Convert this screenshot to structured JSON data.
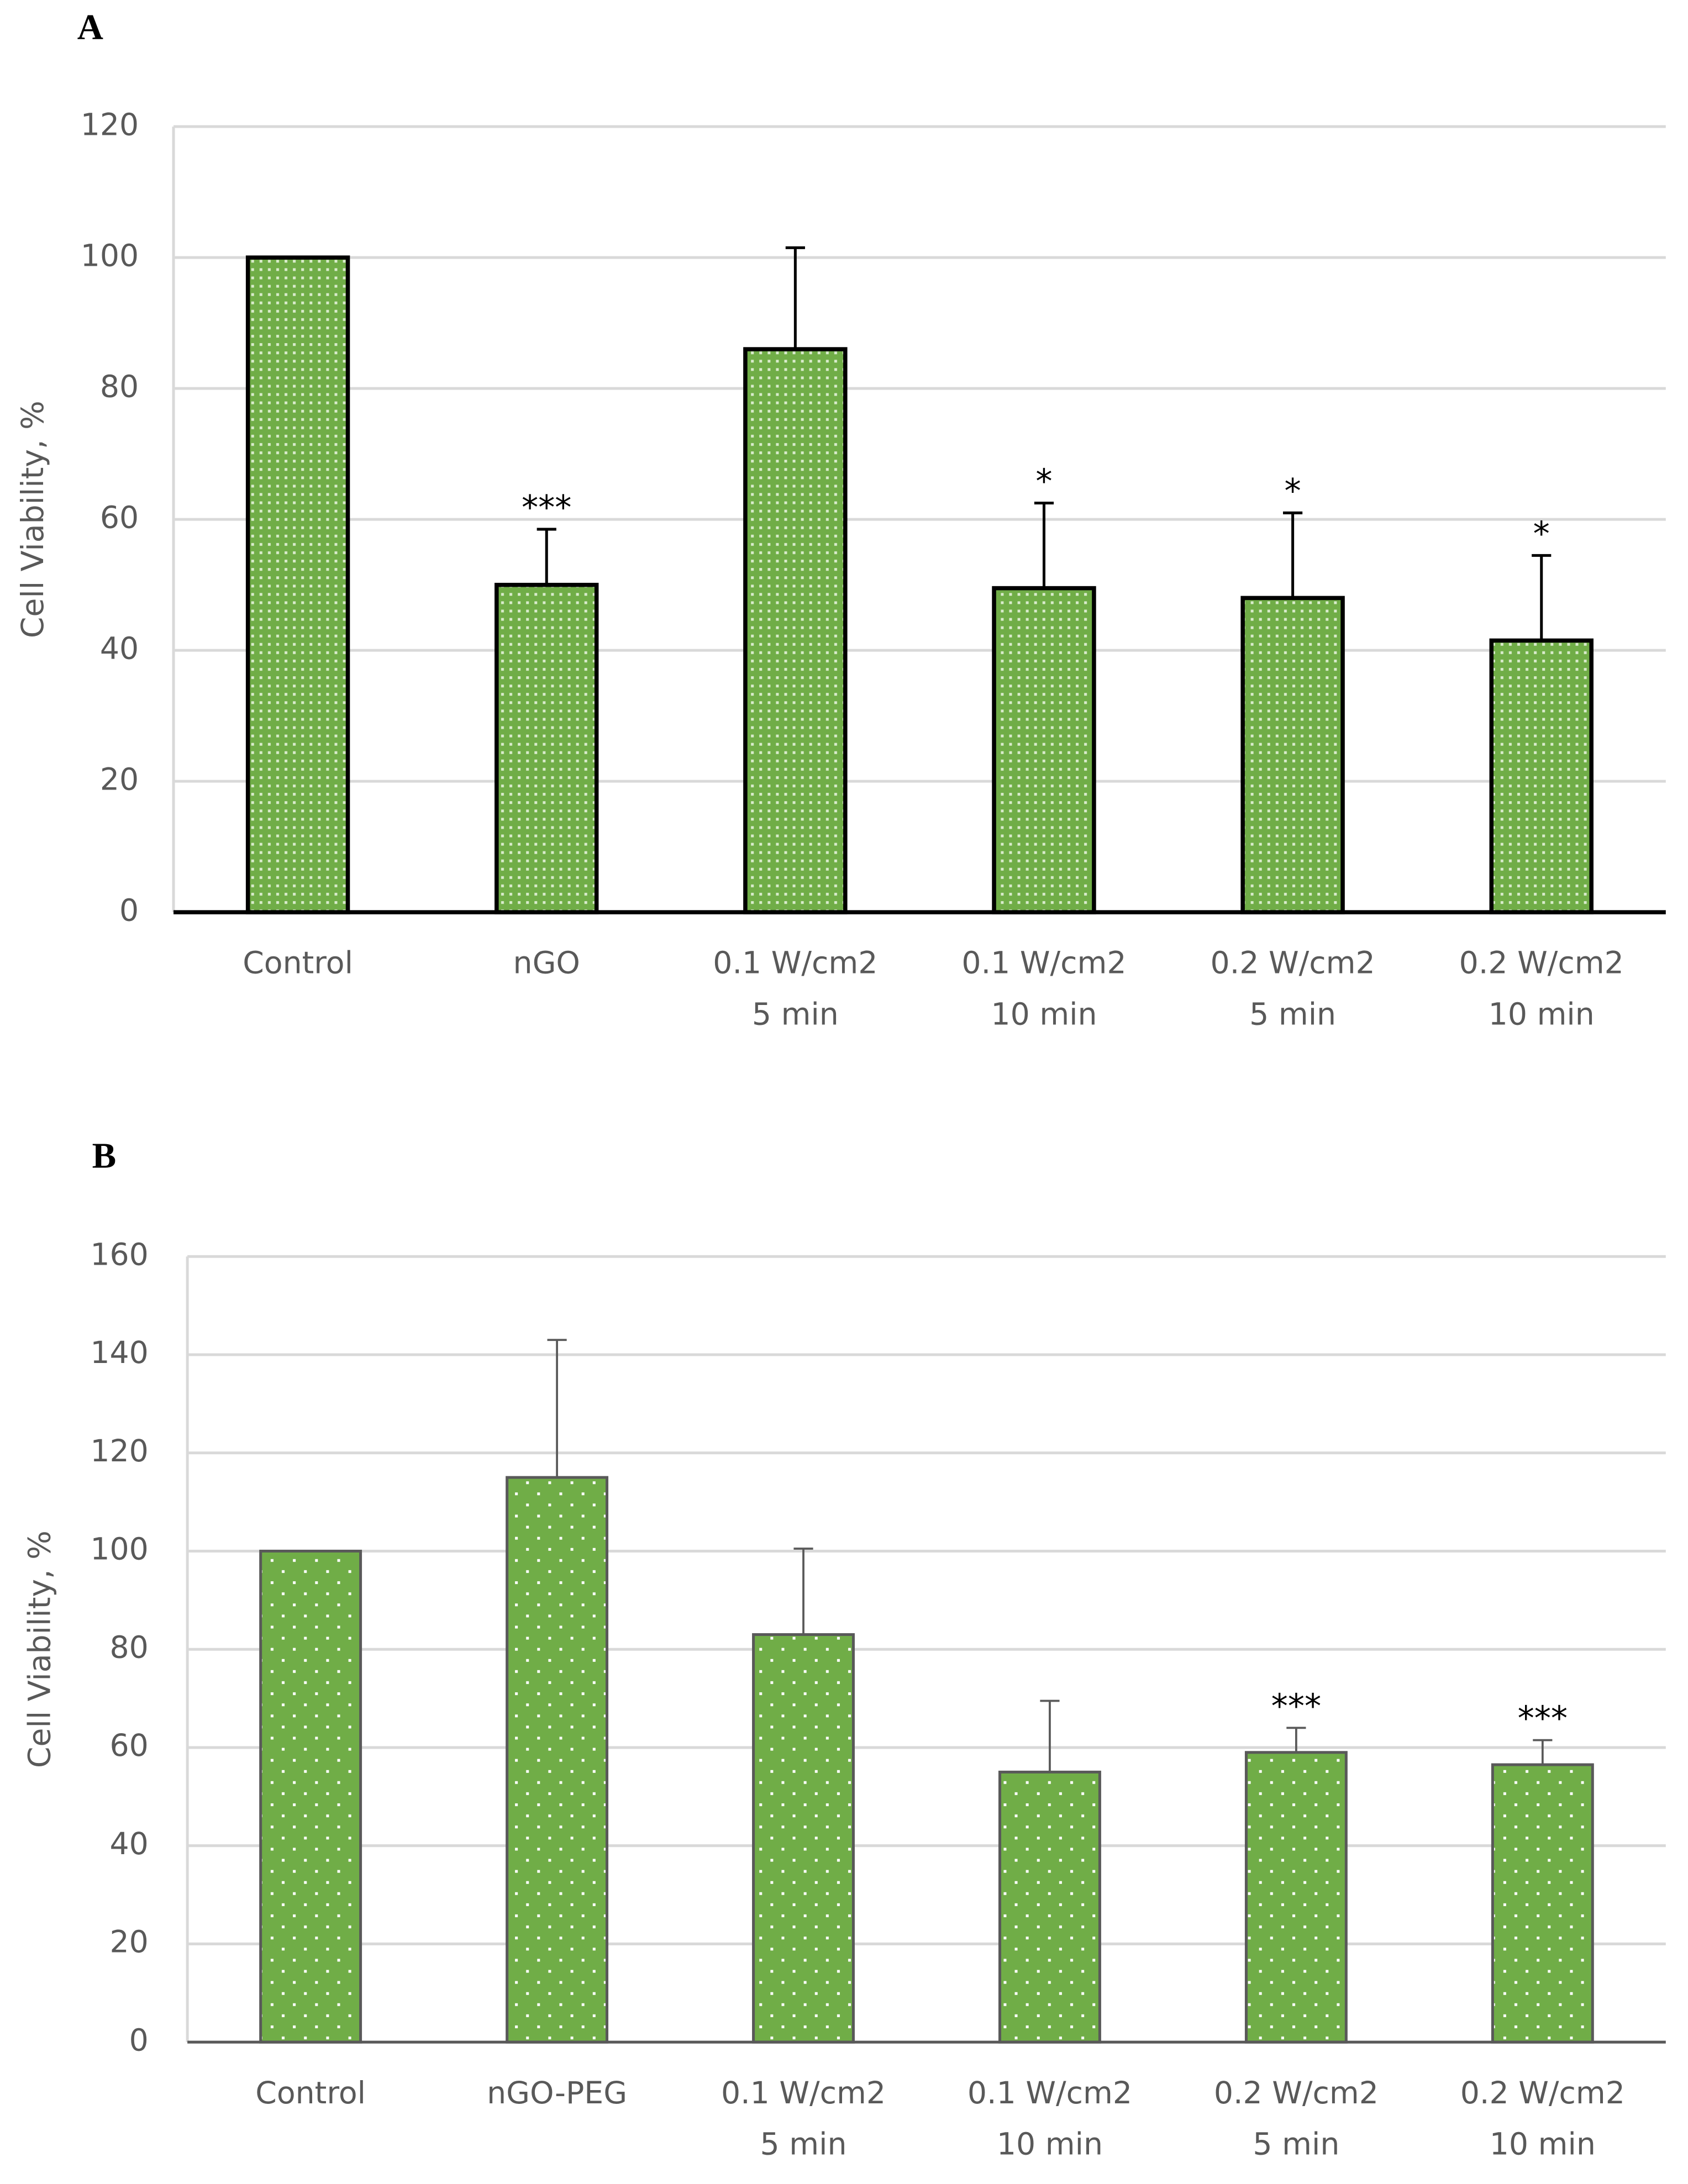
{
  "chart_data": [
    {
      "type": "bar",
      "panel_label": "A",
      "y_label": "Cell Viability, %",
      "categories": [
        [
          "Control"
        ],
        [
          "nGO"
        ],
        [
          "0.1 W/cm2",
          "5 min"
        ],
        [
          "0.1 W/cm2",
          "10 min"
        ],
        [
          "0.2 W/cm2",
          "5 min"
        ],
        [
          "0.2 W/cm2",
          "10 min"
        ]
      ],
      "values": [
        100,
        50,
        86,
        49.5,
        48,
        41.5
      ],
      "errors": [
        null,
        8.5,
        15.5,
        13,
        13,
        13
      ],
      "annotations": [
        null,
        "***",
        null,
        "*",
        "*",
        "*"
      ],
      "color": "#70ad47",
      "edge_color": "#000000",
      "ylim": [
        0,
        120
      ],
      "yticks": [
        0,
        20,
        40,
        60,
        80,
        100,
        120
      ],
      "grid": true
    },
    {
      "type": "bar",
      "panel_label": "B",
      "y_label": "Cell Viability, %",
      "categories": [
        [
          "Control"
        ],
        [
          "nGO-PEG"
        ],
        [
          "0.1 W/cm2",
          "5 min"
        ],
        [
          "0.1 W/cm2",
          "10 min"
        ],
        [
          "0.2 W/cm2",
          "5 min"
        ],
        [
          "0.2 W/cm2",
          "10 min"
        ]
      ],
      "values": [
        100,
        115,
        83,
        55,
        59,
        56.5
      ],
      "errors": [
        null,
        28,
        17.5,
        14.5,
        5,
        5
      ],
      "annotations": [
        null,
        null,
        null,
        null,
        "***",
        "***"
      ],
      "color": "#70ad47",
      "edge_color": "#595959",
      "ylim": [
        0,
        160
      ],
      "yticks": [
        0,
        20,
        40,
        60,
        80,
        100,
        120,
        140,
        160
      ],
      "grid": true
    }
  ]
}
